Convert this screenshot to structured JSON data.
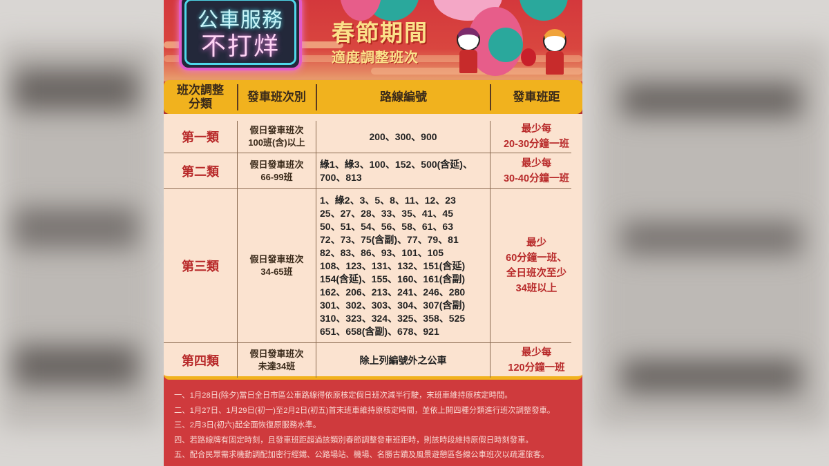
{
  "poster": {
    "badge": {
      "line1": "公車服務",
      "line2": "不打烊"
    },
    "title": "春節期間",
    "subtitle": "適度調整班次"
  },
  "table": {
    "headers": [
      "班次調整\n分類",
      "發車班次別",
      "路線編號",
      "發車班距"
    ],
    "rows": [
      {
        "category": "第一類",
        "frequency": [
          "假日發車班次",
          "100班(含)以上"
        ],
        "routes": [
          "200、300、900"
        ],
        "interval": [
          "最少每",
          "20-30分鐘一班"
        ]
      },
      {
        "category": "第二類",
        "frequency": [
          "假日發車班次",
          "66-99班"
        ],
        "routes": [
          "綠1、綠3、100、152、500(含延)、",
          "700、813"
        ],
        "interval": [
          "最少每",
          "30-40分鐘一班"
        ]
      },
      {
        "category": "第三類",
        "frequency": [
          "假日發車班次",
          "34-65班"
        ],
        "routes": [
          "1、綠2、3、5、8、11、12、23",
          "25、27、28、33、35、41、45",
          "50、51、54、56、58、61、63",
          "72、73、75(含副)、77、79、81",
          "82、83、86、93、101、105",
          "108、123、131、132、151(含延)",
          "154(含延)、155、160、161(含副)",
          "162、206、213、241、246、280",
          "301、302、303、304、307(含副)",
          "310、323、324、325、358、525",
          "651、658(含副)、678、921"
        ],
        "interval": [
          "最少",
          "60分鐘一班、",
          "全日班次至少",
          "34班以上"
        ]
      },
      {
        "category": "第四類",
        "frequency": [
          "假日發車班次",
          "未達34班"
        ],
        "routes": [
          "除上列編號外之公車"
        ],
        "interval": [
          "最少每",
          "120分鐘一班"
        ]
      }
    ]
  },
  "notes": [
    "一、1月28日(除夕)當日全日市區公車路線得依原核定假日班次減半行駛，末班車維持原核定時間。",
    "二、1月27日、1月29日(初一)至2月2日(初五)首末班車維持原核定時間，並依上開四種分類進行班次調整發車。",
    "三、2月3日(初六)起全面恢復原服務水準。",
    "四、若路線牌有固定時刻，且發車班距超過該類別春節調整發車班距時，則該時段維持原假日時刻發車。",
    "五、配合民眾需求機動調配加密行經鐵、公路場站、機場、名勝古蹟及風景遊憩區各線公車班次以疏運旅客。"
  ],
  "colors": {
    "banner_red": "#d4383c",
    "header_yellow": "#f1b21e",
    "table_bg": "#fbe3d0",
    "category_red": "#b82a2a",
    "note_text": "#f8d8d2"
  }
}
